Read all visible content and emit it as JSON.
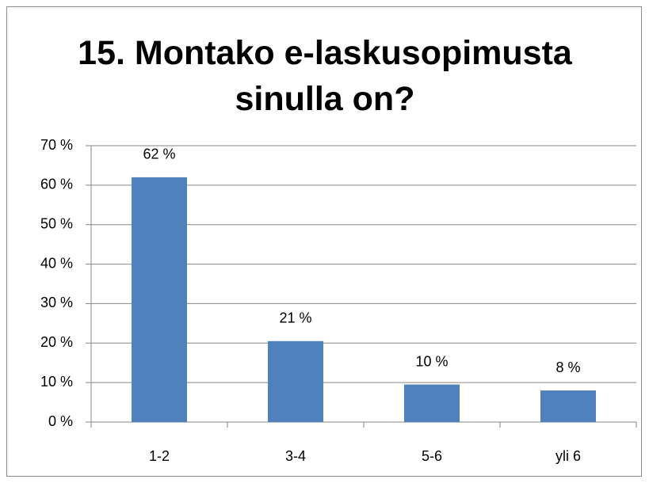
{
  "chart_data": {
    "type": "bar",
    "title": "15. Montako e-laskusopimusta sinulla on?",
    "categories": [
      "1-2",
      "3-4",
      "5-6",
      "yli 6"
    ],
    "values": [
      62,
      20.5,
      9.5,
      8
    ],
    "value_labels": [
      "62 %",
      "21 %",
      "10 %",
      "8 %"
    ],
    "color": "#4f81bd",
    "ylim": [
      0,
      70
    ],
    "yticks": [
      {
        "value": 0,
        "label": "0 %"
      },
      {
        "value": 10,
        "label": "10 %"
      },
      {
        "value": 20,
        "label": "20 %"
      },
      {
        "value": 30,
        "label": "30 %"
      },
      {
        "value": 40,
        "label": "40 %"
      },
      {
        "value": 50,
        "label": "50 %"
      },
      {
        "value": 60,
        "label": "60 %"
      },
      {
        "value": 70,
        "label": "70 %"
      }
    ],
    "grid": true
  }
}
